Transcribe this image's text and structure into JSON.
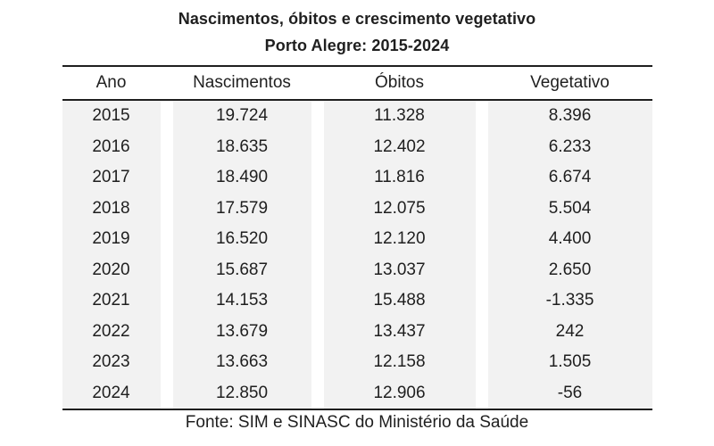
{
  "title": "Nascimentos, óbitos e crescimento vegetativo",
  "subtitle": "Porto Alegre: 2015-2024",
  "table": {
    "columns": [
      "Ano",
      "Nascimentos",
      "Óbitos",
      "Vegetativo"
    ],
    "rows": [
      [
        "2015",
        "19.724",
        "11.328",
        "8.396"
      ],
      [
        "2016",
        "18.635",
        "12.402",
        "6.233"
      ],
      [
        "2017",
        "18.490",
        "11.816",
        "6.674"
      ],
      [
        "2018",
        "17.579",
        "12.075",
        "5.504"
      ],
      [
        "2019",
        "16.520",
        "12.120",
        "4.400"
      ],
      [
        "2020",
        "15.687",
        "13.037",
        "2.650"
      ],
      [
        "2021",
        "14.153",
        "15.488",
        "-1.335"
      ],
      [
        "2022",
        "13.679",
        "13.437",
        "242"
      ],
      [
        "2023",
        "13.663",
        "12.158",
        "1.505"
      ],
      [
        "2024",
        "12.850",
        "12.906",
        "-56"
      ]
    ]
  },
  "footer": "Fonte: SIM e SINASC do Ministério da Saúde",
  "colors": {
    "text": "#1f1f1f",
    "rule": "#1f1f1f",
    "cell_band": "#f2f2f2",
    "page_bg": "#ffffff"
  },
  "chart_data": {
    "type": "table",
    "title": "Nascimentos, óbitos e crescimento vegetativo",
    "subtitle": "Porto Alegre: 2015-2024",
    "columns": [
      "Ano",
      "Nascimentos",
      "Óbitos",
      "Vegetativo"
    ],
    "categories": [
      2015,
      2016,
      2017,
      2018,
      2019,
      2020,
      2021,
      2022,
      2023,
      2024
    ],
    "series": [
      {
        "name": "Nascimentos",
        "values": [
          19724,
          18635,
          18490,
          17579,
          16520,
          15687,
          14153,
          13679,
          13663,
          12850
        ]
      },
      {
        "name": "Óbitos",
        "values": [
          11328,
          12402,
          11816,
          12075,
          12120,
          13037,
          15488,
          13437,
          12158,
          12906
        ]
      },
      {
        "name": "Vegetativo",
        "values": [
          8396,
          6233,
          6674,
          5504,
          4400,
          2650,
          -1335,
          242,
          1505,
          -56
        ]
      }
    ],
    "source": "Fonte: SIM e SINASC do Ministério da Saúde"
  }
}
